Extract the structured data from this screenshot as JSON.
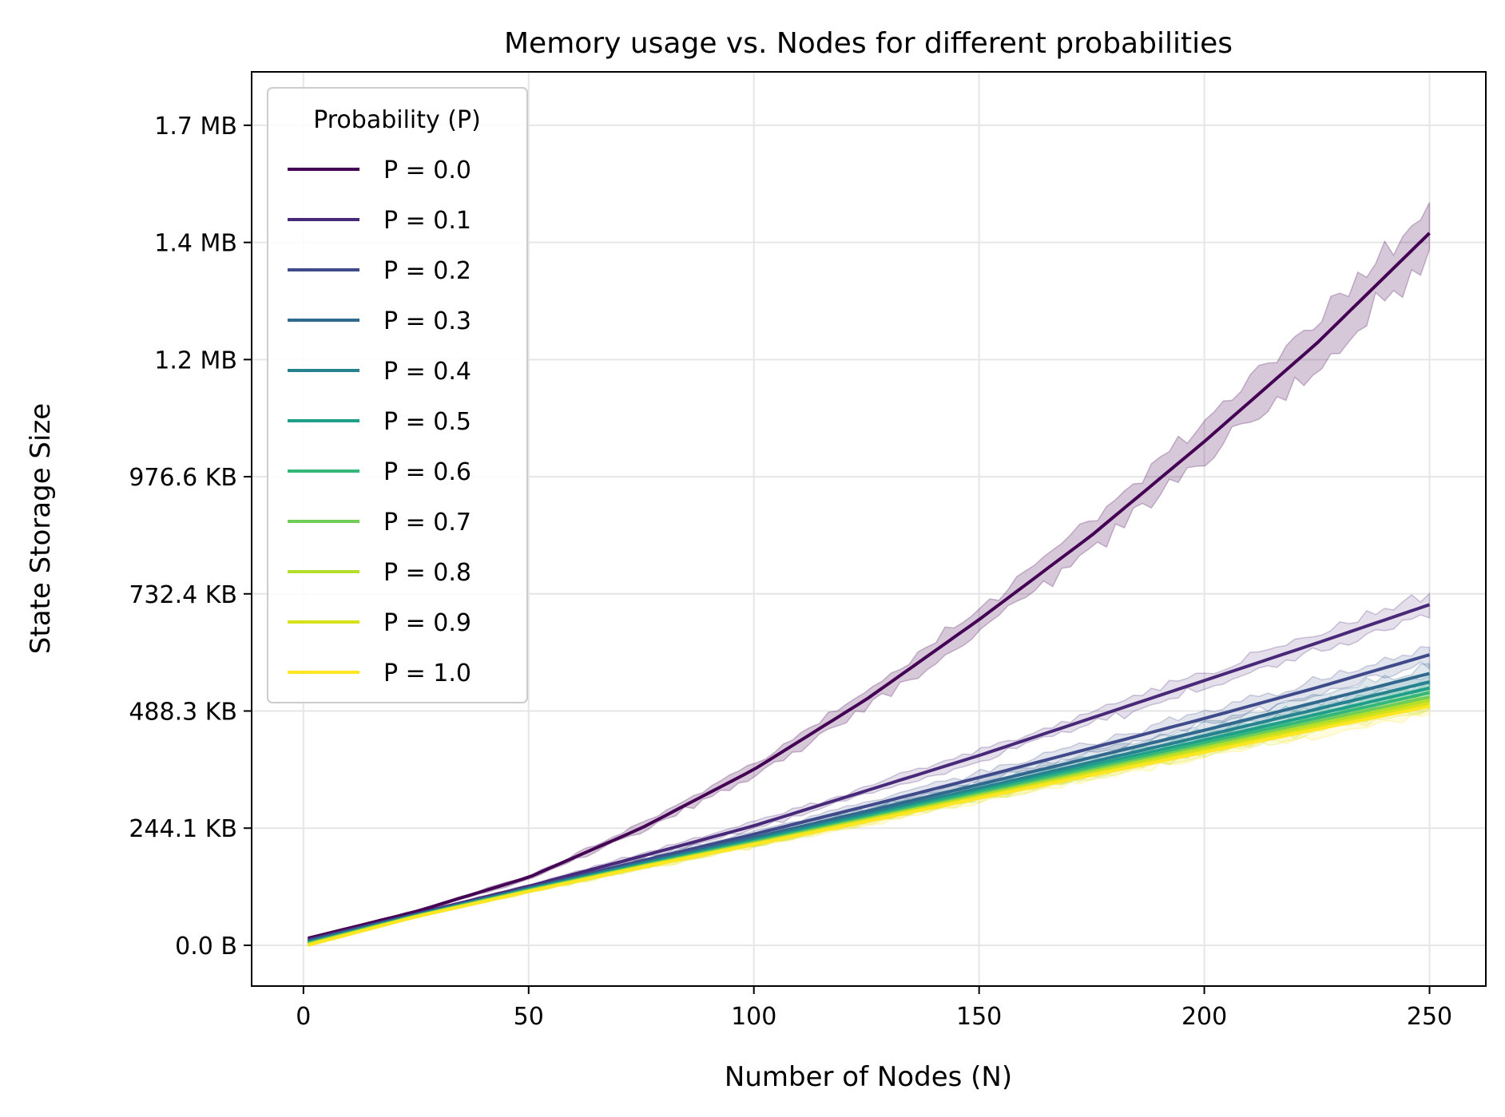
{
  "chart_data": {
    "type": "line",
    "title": "Memory usage vs. Nodes for different probabilities",
    "xlabel": "Number of Nodes (N)",
    "ylabel": "State Storage Size",
    "xlim": [
      -11.5,
      262.5
    ],
    "ylim": [
      -87000,
      1864000
    ],
    "x_ticks": [
      0,
      50,
      100,
      150,
      200,
      250
    ],
    "y_ticks": [
      {
        "value": 0,
        "label": "0.0 B"
      },
      {
        "value": 250000,
        "label": "244.1 KB"
      },
      {
        "value": 500000,
        "label": "488.3 KB"
      },
      {
        "value": 750000,
        "label": "732.4 KB"
      },
      {
        "value": 1000000,
        "label": "976.6 KB"
      },
      {
        "value": 1250000,
        "label": "1.2 MB"
      },
      {
        "value": 1500000,
        "label": "1.4 MB"
      },
      {
        "value": 1750000,
        "label": "1.7 MB"
      }
    ],
    "grid": true,
    "legend": {
      "title": "Probability (P)",
      "position": "top-left"
    },
    "band_color": "#440154",
    "series": [
      {
        "name": "P = 0.0",
        "color": "#440154",
        "x": [
          1,
          25,
          50,
          75,
          100,
          125,
          150,
          175,
          200,
          225,
          250
        ],
        "y": [
          15000,
          72000,
          145000,
          250000,
          375000,
          525000,
          695000,
          875000,
          1075000,
          1285000,
          1520000
        ]
      },
      {
        "name": "P = 0.1",
        "color": "#482878",
        "x": [
          1,
          25,
          50,
          75,
          100,
          125,
          150,
          175,
          200,
          225,
          250
        ],
        "y": [
          12000,
          67000,
          126000,
          190000,
          255000,
          330000,
          405000,
          485000,
          565000,
          645000,
          727000
        ]
      },
      {
        "name": "P = 0.2",
        "color": "#3e4a89",
        "x": [
          1,
          25,
          50,
          75,
          100,
          125,
          150,
          175,
          200,
          225,
          250
        ],
        "y": [
          10000,
          66000,
          123000,
          180000,
          237000,
          297000,
          358000,
          421000,
          484000,
          550000,
          620000
        ]
      },
      {
        "name": "P = 0.3",
        "color": "#31688e",
        "x": [
          1,
          25,
          50,
          75,
          100,
          125,
          150,
          175,
          200,
          225,
          250
        ],
        "y": [
          8000,
          65000,
          121000,
          176000,
          230000,
          286000,
          343000,
          401000,
          459000,
          519000,
          580000
        ]
      },
      {
        "name": "P = 0.4",
        "color": "#26828e",
        "x": [
          1,
          25,
          50,
          75,
          100,
          125,
          150,
          175,
          200,
          225,
          250
        ],
        "y": [
          6000,
          64000,
          120000,
          174000,
          226000,
          280000,
          335000,
          391000,
          447000,
          504000,
          562000
        ]
      },
      {
        "name": "P = 0.5",
        "color": "#1f9e89",
        "x": [
          1,
          25,
          50,
          75,
          100,
          125,
          150,
          175,
          200,
          225,
          250
        ],
        "y": [
          5000,
          63000,
          119000,
          172000,
          223000,
          276000,
          330000,
          384000,
          438000,
          493000,
          549000
        ]
      },
      {
        "name": "P = 0.6",
        "color": "#35b779",
        "x": [
          1,
          25,
          50,
          75,
          100,
          125,
          150,
          175,
          200,
          225,
          250
        ],
        "y": [
          4000,
          63000,
          118000,
          170000,
          221000,
          273000,
          326000,
          379000,
          432000,
          485000,
          539000
        ]
      },
      {
        "name": "P = 0.7",
        "color": "#6ece58",
        "x": [
          1,
          25,
          50,
          75,
          100,
          125,
          150,
          175,
          200,
          225,
          250
        ],
        "y": [
          3000,
          62000,
          117000,
          169000,
          219000,
          270000,
          322000,
          374000,
          426000,
          478000,
          530000
        ]
      },
      {
        "name": "P = 0.8",
        "color": "#b5de2b",
        "x": [
          1,
          25,
          50,
          75,
          100,
          125,
          150,
          175,
          200,
          225,
          250
        ],
        "y": [
          2000,
          62000,
          116000,
          168000,
          217000,
          268000,
          319000,
          370000,
          421000,
          472000,
          523000
        ]
      },
      {
        "name": "P = 0.9",
        "color": "#d8e219",
        "x": [
          1,
          25,
          50,
          75,
          100,
          125,
          150,
          175,
          200,
          225,
          250
        ],
        "y": [
          1000,
          61000,
          115000,
          167000,
          216000,
          266000,
          316000,
          366000,
          416000,
          466000,
          516000
        ]
      },
      {
        "name": "P = 1.0",
        "color": "#fde725",
        "x": [
          1,
          25,
          50,
          75,
          100,
          125,
          150,
          175,
          200,
          225,
          250
        ],
        "y": [
          0,
          61000,
          115000,
          166000,
          215000,
          264000,
          314000,
          363000,
          412000,
          461000,
          510000
        ]
      }
    ]
  }
}
